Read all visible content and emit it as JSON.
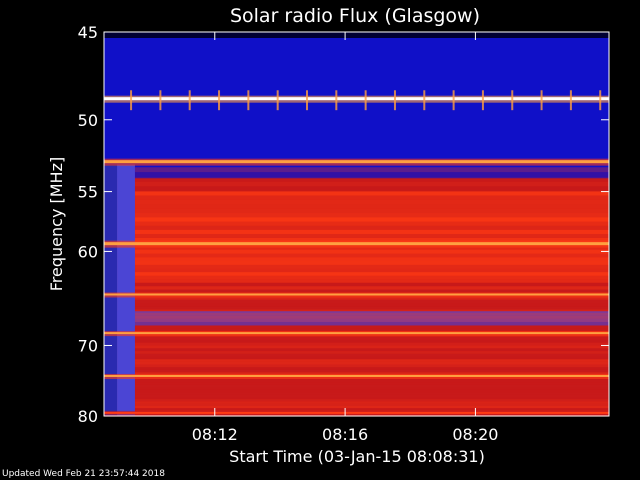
{
  "chart_data": {
    "type": "heatmap",
    "title": "Solar radio Flux (Glasgow)",
    "xlabel": "Start Time (03-Jan-15 08:08:31)",
    "ylabel": "Frequency [MHz]",
    "x_ticks": [
      {
        "label": "08:12",
        "minutes": 12
      },
      {
        "label": "08:16",
        "minutes": 16
      },
      {
        "label": "08:20",
        "minutes": 20
      }
    ],
    "y_ticks": [
      {
        "label": "45",
        "mhz": 45
      },
      {
        "label": "50",
        "mhz": 50
      },
      {
        "label": "55",
        "mhz": 55
      },
      {
        "label": "60",
        "mhz": 60
      },
      {
        "label": "70",
        "mhz": 70
      },
      {
        "label": "80",
        "mhz": 80
      }
    ],
    "y_scale": "reciprocal",
    "xlim_minutes": [
      8.6,
      24.1
    ],
    "ylim_mhz": [
      45,
      80
    ],
    "colormap": [
      "#000033",
      "#1010c8",
      "#4a3cd0",
      "#c81a1a",
      "#ff3a14",
      "#ffa040",
      "#ffffff"
    ],
    "colors": {
      "background": "#000000",
      "text": "#ffffff",
      "frame": "#ffffff"
    },
    "emission_bands_mhz": [
      {
        "mhz": 48.7,
        "intensity": "saturated"
      },
      {
        "mhz": 52.8,
        "intensity": "strong"
      },
      {
        "mhz": 59.3,
        "intensity": "strong"
      },
      {
        "mhz": 64.2,
        "intensity": "medium"
      },
      {
        "mhz": 68.5,
        "intensity": "medium"
      },
      {
        "mhz": 74.0,
        "intensity": "medium"
      },
      {
        "mhz": 79.5,
        "intensity": "weak"
      }
    ],
    "grid": false
  },
  "footer": "Updated Wed Feb 21 23:57:44 2018"
}
